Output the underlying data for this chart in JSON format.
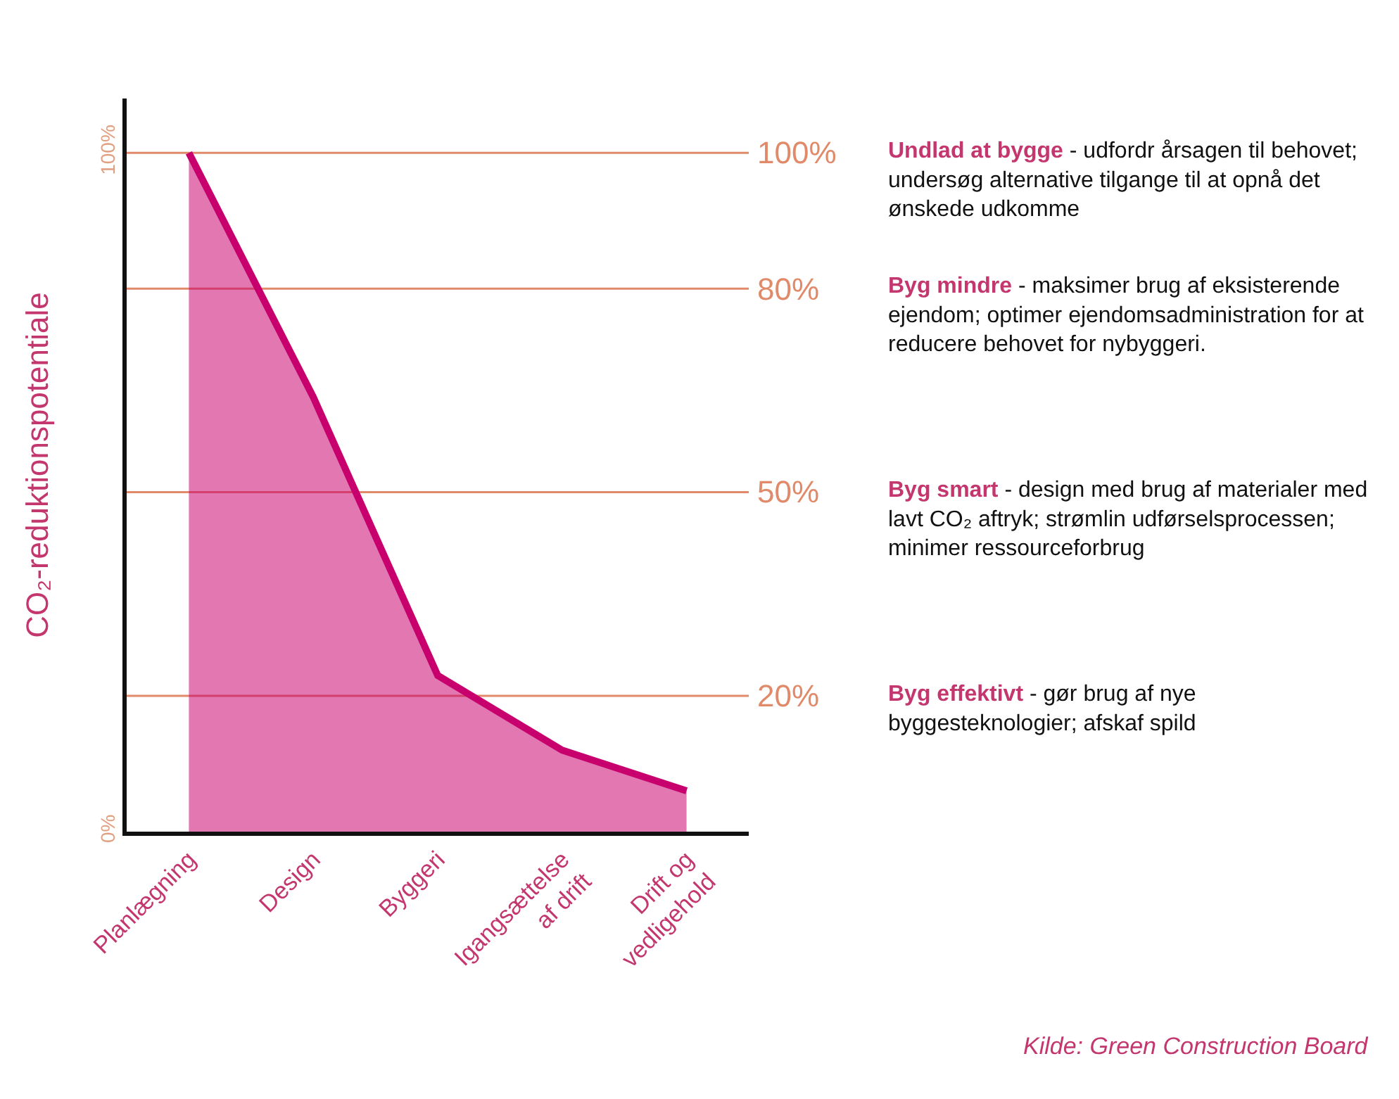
{
  "chart_data": {
    "type": "area",
    "ylabel": "CO₂-reduktionspotentiale",
    "categories": [
      "Planlægning",
      "Design",
      "Byggeri",
      "Igangsættelse af drift",
      "Drift og vedligehold"
    ],
    "series": [
      {
        "color": "#c8006e",
        "values": [
          100,
          64,
          23,
          12,
          6
        ]
      }
    ],
    "ylim": [
      0,
      108
    ],
    "yticks": [
      {
        "value": 0,
        "label": "0%"
      },
      {
        "value": 100,
        "label": "100%"
      }
    ],
    "ref_lines": [
      {
        "axis": "y",
        "value": 100,
        "label": "100%",
        "color": "#e08a6a"
      },
      {
        "axis": "y",
        "value": 80,
        "label": "80%",
        "color": "#e08a6a"
      },
      {
        "axis": "y",
        "value": 50,
        "label": "50%",
        "color": "#e08a6a"
      },
      {
        "axis": "y",
        "value": 20,
        "label": "20%",
        "color": "#e08a6a"
      }
    ],
    "annotations": [
      "Undlad at bygge - udfordr årsagen til behovet; undersøg alternative tilgange til at opnå det ønskede udkomme",
      "Byg mindre - maksimer brug af eksisterende ejendom; optimer ejendomsadministration for at reducere behovet for nybyggeri.",
      "Byg smart - design med brug af materialer med lavt CO₂ aftryk; strømlin udførselsprocessen; minimer ressourceforbrug",
      "Byg effektivt - gør brug af nye byggesteknologier; afskaf spild",
      "Kilde: Green Construction Board"
    ],
    "grid": false,
    "marker": "none"
  }
}
